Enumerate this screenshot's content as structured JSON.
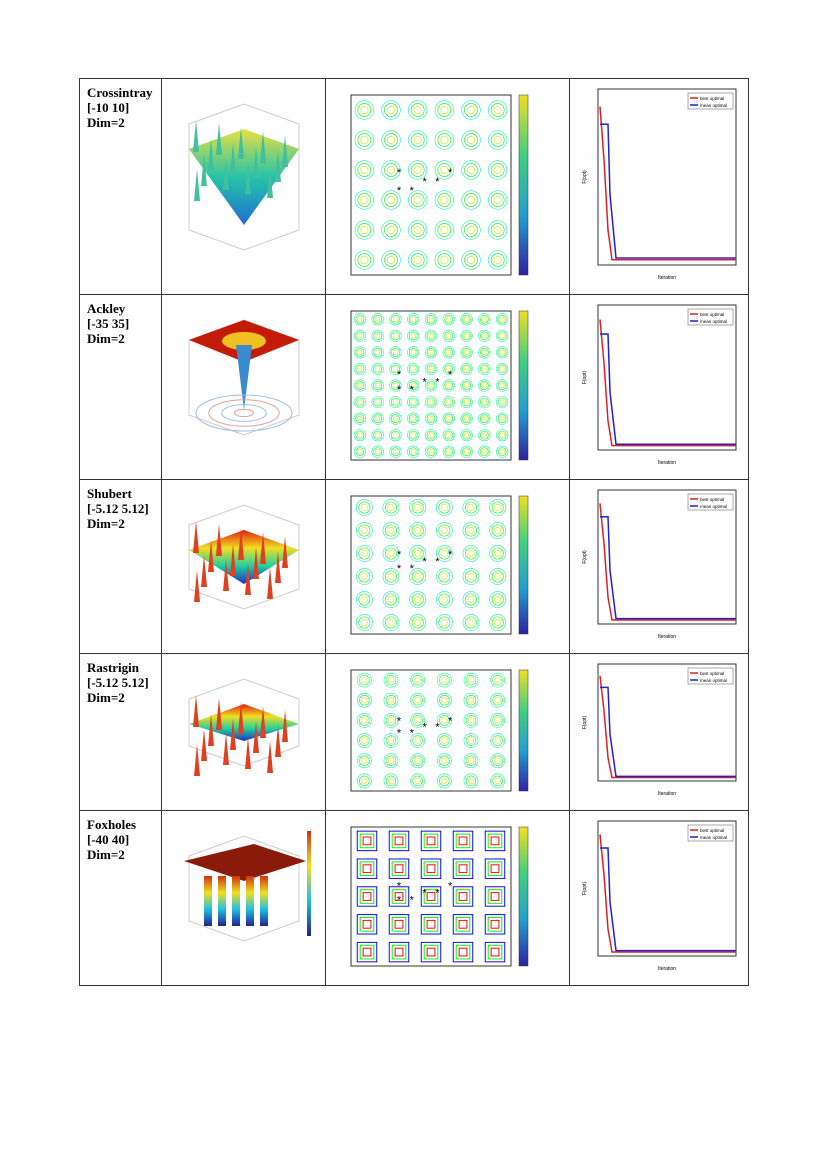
{
  "table": {
    "rows": [
      {
        "name": "Crossintray",
        "range": "[-10 10]",
        "dim": "Dim=2",
        "legend": [
          "best optimal",
          "mean optimal"
        ],
        "xlabel": "Iteration",
        "ylabel": "F(opt)"
      },
      {
        "name": "Ackley",
        "range": "[-35 35]",
        "dim": "Dim=2",
        "legend": [
          "best optimal",
          "mean optimal"
        ],
        "xlabel": "Iteration",
        "ylabel": "F(opt)"
      },
      {
        "name": "Shubert",
        "range": "[-5.12 5.12]",
        "dim": "Dim=2",
        "legend": [
          "best optimal",
          "mean optimal"
        ],
        "xlabel": "Iteration",
        "ylabel": "F(opt)"
      },
      {
        "name": "Rastrigin",
        "range": "[-5.12 5.12]",
        "dim": "Dim=2",
        "legend": [
          "best optimal",
          "mean optimal"
        ],
        "xlabel": "Iteration",
        "ylabel": "F(opt)"
      },
      {
        "name": "Foxholes",
        "range": "[-40 40]",
        "dim": "Dim=2",
        "legend": [
          "best optimal",
          "mean optimal"
        ],
        "xlabel": "Iteration",
        "ylabel": "F(opt)"
      }
    ]
  }
}
